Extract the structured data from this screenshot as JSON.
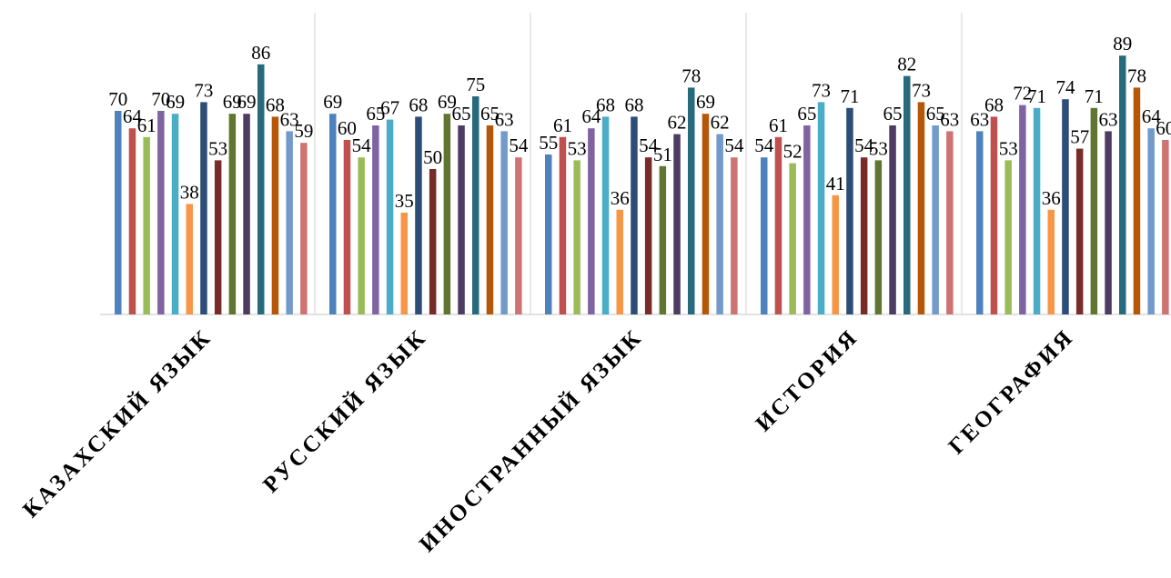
{
  "chart_data": {
    "type": "bar",
    "categories": [
      "КАЗАХСКИЙ ЯЗЫК",
      "РУССКИЙ ЯЗЫК",
      "ИНОСТРАННЫЙ ЯЗЫК",
      "ИСТОРИЯ",
      "ГЕОГРАФИЯ"
    ],
    "ylim": [
      0,
      100
    ],
    "grid": "vertical category separators",
    "legend": "none",
    "series": [
      {
        "color": "#4f81bd",
        "values": [
          70,
          69,
          55,
          54,
          63
        ]
      },
      {
        "color": "#c0504d",
        "values": [
          64,
          60,
          61,
          61,
          68
        ]
      },
      {
        "color": "#9bbb59",
        "values": [
          61,
          54,
          53,
          52,
          53
        ]
      },
      {
        "color": "#8064a2",
        "values": [
          70,
          65,
          64,
          65,
          72
        ]
      },
      {
        "color": "#4bacc6",
        "values": [
          69,
          67,
          68,
          73,
          71
        ]
      },
      {
        "color": "#f79646",
        "values": [
          38,
          35,
          36,
          41,
          36
        ]
      },
      {
        "color": "#2c4d75",
        "values": [
          73,
          68,
          68,
          71,
          74
        ]
      },
      {
        "color": "#772c2a",
        "values": [
          53,
          50,
          54,
          54,
          57
        ]
      },
      {
        "color": "#5f7530",
        "values": [
          69,
          69,
          51,
          53,
          71
        ]
      },
      {
        "color": "#4d3b62",
        "values": [
          69,
          65,
          62,
          65,
          63
        ]
      },
      {
        "color": "#276a7c",
        "values": [
          86,
          75,
          78,
          82,
          89
        ]
      },
      {
        "color": "#b65708",
        "values": [
          68,
          65,
          69,
          73,
          78
        ]
      },
      {
        "color": "#729aca",
        "values": [
          63,
          63,
          62,
          65,
          64
        ]
      },
      {
        "color": "#cd7371",
        "values": [
          59,
          54,
          54,
          63,
          60
        ]
      }
    ]
  }
}
